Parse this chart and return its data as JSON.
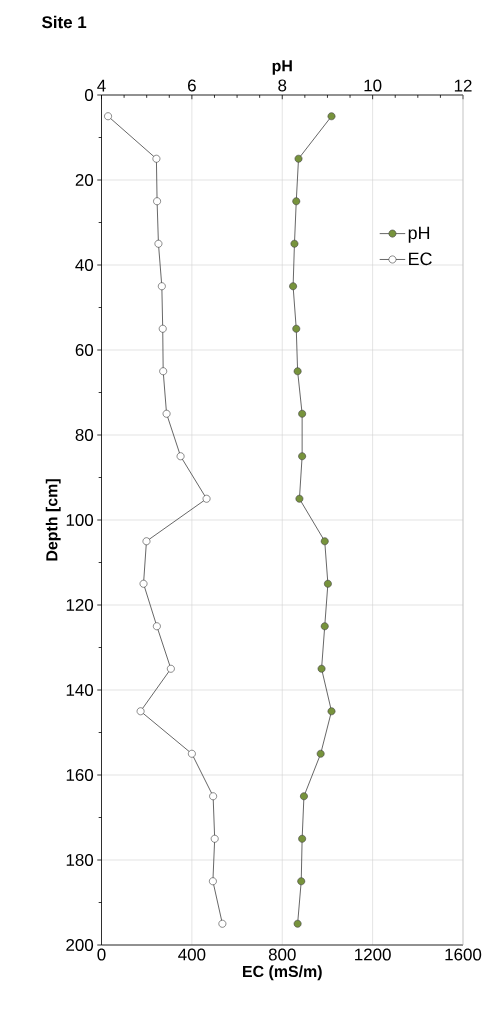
{
  "chart_data": {
    "type": "line",
    "title": "Site 1",
    "xlabel": "EC (mS/m)",
    "x2label": "pH",
    "ylabel": "Depth [cm]",
    "xlim": [
      0,
      1600
    ],
    "xticks": [
      0,
      400,
      800,
      1200,
      1600
    ],
    "x2lim": [
      4,
      12
    ],
    "x2ticks": [
      4,
      6,
      8,
      10,
      12
    ],
    "ylim": [
      200,
      0
    ],
    "yticks": [
      0,
      20,
      40,
      60,
      80,
      100,
      120,
      140,
      160,
      180,
      200
    ],
    "grid": true,
    "legend": "top right",
    "marker": "circle",
    "line_style": "solid",
    "series": [
      {
        "name": "pH",
        "color": "#77933c",
        "axis": "x2",
        "x": [
          9.09,
          8.36,
          8.31,
          8.27,
          8.24,
          8.31,
          8.34,
          8.44,
          8.44,
          8.38,
          8.94,
          9.01,
          8.94,
          8.87,
          9.09,
          8.85,
          8.48,
          8.44,
          8.42,
          8.34
        ],
        "values": [
          5,
          15,
          25,
          35,
          45,
          55,
          65,
          75,
          85,
          95,
          105,
          115,
          125,
          135,
          145,
          155,
          165,
          175,
          185,
          195
        ]
      },
      {
        "name": "EC",
        "color": "#ffffff",
        "x": [
          29,
          243,
          246,
          252,
          267,
          271,
          273,
          288,
          350,
          465,
          199,
          186,
          245,
          307,
          173,
          400,
          494,
          501,
          493,
          535
        ],
        "values": [
          5,
          15,
          25,
          35,
          45,
          55,
          65,
          75,
          85,
          95,
          105,
          115,
          125,
          135,
          145,
          155,
          165,
          175,
          185,
          195
        ]
      }
    ]
  }
}
